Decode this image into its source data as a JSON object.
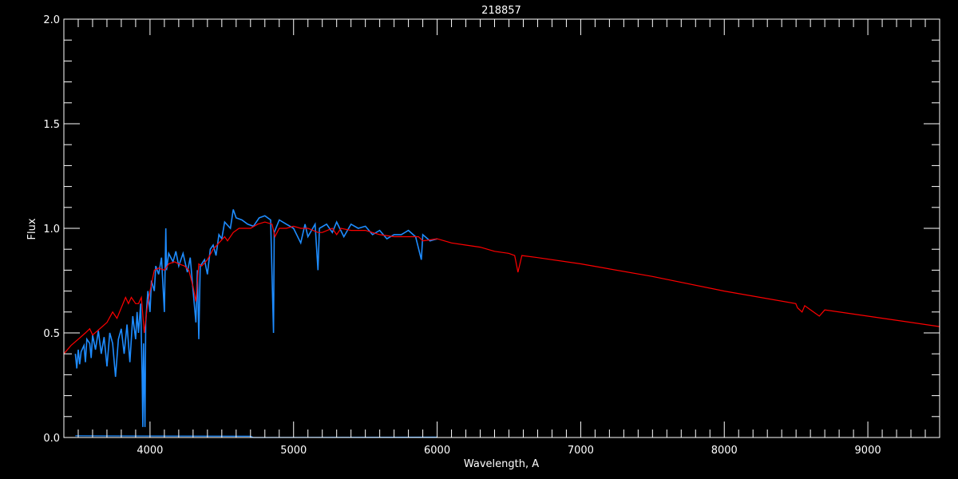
{
  "chart_data": {
    "type": "line",
    "title": "218857",
    "xlabel": "Wavelength, A",
    "ylabel": "Flux",
    "xlim": [
      3400,
      9500
    ],
    "ylim": [
      0,
      2.0
    ],
    "xticks": [
      "4000",
      "5000",
      "6000",
      "7000",
      "8000",
      "9000"
    ],
    "yticks": [
      "0.0",
      "0.5",
      "1.0",
      "1.5",
      "2.0"
    ],
    "grid": false,
    "background": "#000000",
    "series": [
      {
        "color": "#1e8cff",
        "x": [
          3480,
          3490,
          3500,
          3510,
          3520,
          3540,
          3550,
          3560,
          3580,
          3590,
          3600,
          3620,
          3640,
          3660,
          3680,
          3700,
          3720,
          3740,
          3760,
          3780,
          3800,
          3820,
          3840,
          3860,
          3880,
          3900,
          3910,
          3920,
          3935,
          3945,
          3950,
          3955,
          3965,
          3970,
          3985,
          4000,
          4010,
          4030,
          4040,
          4060,
          4080,
          4100,
          4110,
          4115,
          4130,
          4160,
          4180,
          4200,
          4230,
          4260,
          4280,
          4300,
          4320,
          4330,
          4340,
          4350,
          4380,
          4400,
          4420,
          4440,
          4460,
          4480,
          4500,
          4520,
          4560,
          4580,
          4600,
          4640,
          4680,
          4720,
          4760,
          4800,
          4840,
          4860,
          4865,
          4900,
          4950,
          5000,
          5050,
          5080,
          5100,
          5150,
          5170,
          5180,
          5230,
          5270,
          5300,
          5350,
          5400,
          5450,
          5500,
          5550,
          5600,
          5650,
          5700,
          5750,
          5800,
          5850,
          5890,
          5900,
          5950,
          6000
        ],
        "y": [
          0.4,
          0.33,
          0.42,
          0.35,
          0.41,
          0.44,
          0.36,
          0.47,
          0.45,
          0.38,
          0.49,
          0.42,
          0.51,
          0.4,
          0.48,
          0.34,
          0.5,
          0.45,
          0.29,
          0.47,
          0.52,
          0.4,
          0.54,
          0.36,
          0.58,
          0.47,
          0.6,
          0.5,
          0.64,
          0.3,
          0.05,
          0.45,
          0.05,
          0.55,
          0.7,
          0.6,
          0.75,
          0.7,
          0.82,
          0.78,
          0.86,
          0.6,
          1.0,
          0.8,
          0.88,
          0.84,
          0.89,
          0.82,
          0.88,
          0.79,
          0.86,
          0.7,
          0.55,
          0.8,
          0.47,
          0.82,
          0.85,
          0.78,
          0.9,
          0.92,
          0.87,
          0.97,
          0.95,
          1.03,
          1.0,
          1.09,
          1.05,
          1.04,
          1.02,
          1.01,
          1.05,
          1.06,
          1.04,
          0.5,
          0.98,
          1.04,
          1.02,
          1.0,
          0.93,
          1.02,
          0.96,
          1.02,
          0.8,
          1.0,
          1.02,
          0.98,
          1.03,
          0.96,
          1.02,
          1.0,
          1.01,
          0.97,
          0.99,
          0.95,
          0.97,
          0.97,
          0.99,
          0.96,
          0.85,
          0.97,
          0.94,
          0.95
        ]
      },
      {
        "color": "#1e8cff",
        "x": [
          3480,
          4700,
          4720,
          6000
        ],
        "y": [
          0.008,
          0.006,
          0.0,
          0.002
        ]
      },
      {
        "color": "#ff0000",
        "x": [
          3400,
          3450,
          3500,
          3550,
          3580,
          3600,
          3650,
          3700,
          3740,
          3770,
          3800,
          3830,
          3850,
          3870,
          3900,
          3920,
          3940,
          3960,
          3980,
          4000,
          4030,
          4060,
          4100,
          4130,
          4170,
          4200,
          4240,
          4270,
          4300,
          4320,
          4340,
          4360,
          4400,
          4440,
          4480,
          4520,
          4540,
          4580,
          4620,
          4700,
          4750,
          4800,
          4850,
          4870,
          4900,
          4950,
          5000,
          5050,
          5100,
          5170,
          5200,
          5270,
          5300,
          5330,
          5400,
          5500,
          5600,
          5700,
          5800,
          5870,
          5900,
          6000,
          6100,
          6200,
          6300,
          6400,
          6500,
          6540,
          6563,
          6590,
          6700,
          7000,
          7500,
          8000,
          8498,
          8510,
          8542,
          8560,
          8662,
          8700,
          9000,
          9500
        ],
        "y": [
          0.4,
          0.44,
          0.47,
          0.5,
          0.52,
          0.49,
          0.52,
          0.55,
          0.6,
          0.57,
          0.62,
          0.67,
          0.64,
          0.67,
          0.64,
          0.64,
          0.67,
          0.5,
          0.62,
          0.7,
          0.8,
          0.81,
          0.8,
          0.83,
          0.84,
          0.83,
          0.82,
          0.8,
          0.72,
          0.65,
          0.83,
          0.82,
          0.85,
          0.9,
          0.93,
          0.96,
          0.94,
          0.98,
          1.0,
          1.0,
          1.02,
          1.03,
          1.02,
          0.96,
          1.0,
          1.0,
          1.01,
          1.0,
          1.0,
          0.98,
          0.98,
          1.0,
          0.97,
          1.0,
          0.99,
          0.99,
          0.97,
          0.96,
          0.96,
          0.96,
          0.94,
          0.95,
          0.93,
          0.92,
          0.91,
          0.89,
          0.88,
          0.87,
          0.79,
          0.87,
          0.86,
          0.83,
          0.77,
          0.7,
          0.64,
          0.62,
          0.6,
          0.63,
          0.58,
          0.61,
          0.58,
          0.53
        ]
      }
    ]
  }
}
